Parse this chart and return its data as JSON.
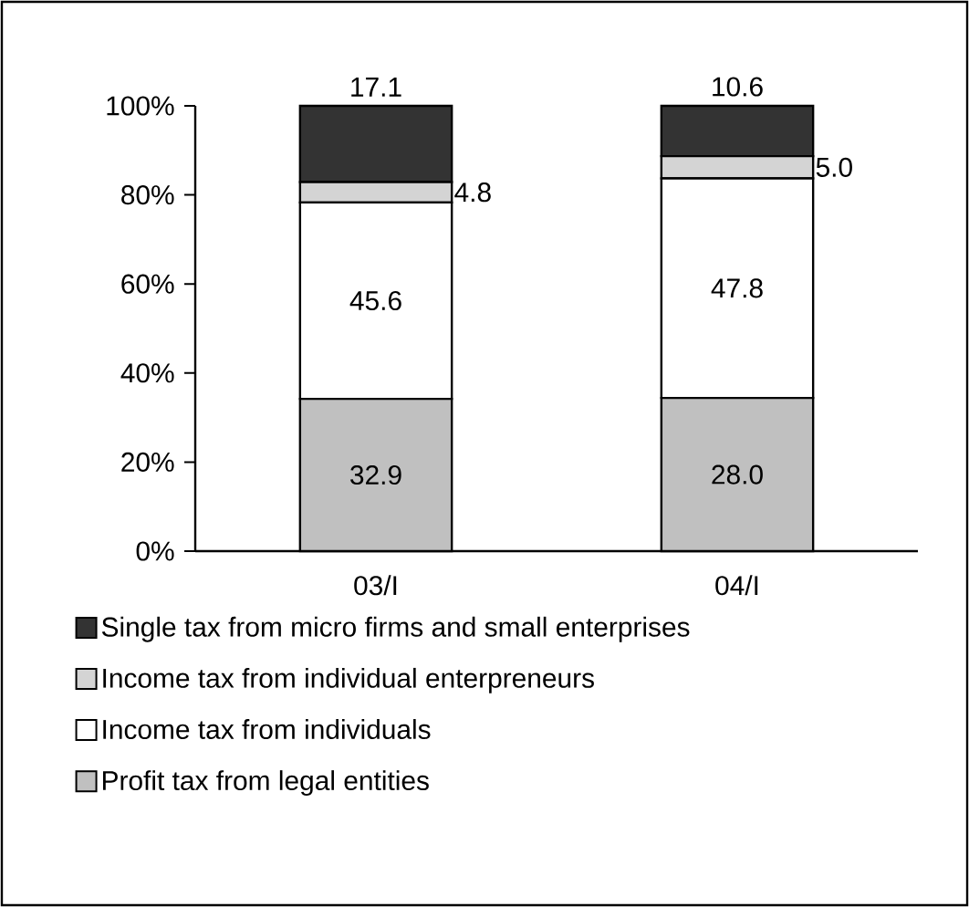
{
  "chart_data": {
    "type": "bar",
    "stacked": true,
    "categories": [
      "03/I",
      "04/I"
    ],
    "series": [
      {
        "name": "Profit tax from legal entities",
        "color": "#c0c0c0",
        "values": [
          34.2,
          34.4
        ]
      },
      {
        "name": "Income tax from individuals",
        "color": "#ffffff",
        "values": [
          44.1,
          49.3
        ]
      },
      {
        "name": "Income tax from individual enterpreneurs",
        "color": "#d4d4d4",
        "values": [
          4.6,
          5.0
        ]
      },
      {
        "name": "Single tax from micro firms and small enterprises",
        "color": "#333333",
        "values": [
          17.1,
          11.3
        ]
      }
    ],
    "annotations": [
      {
        "text": "17.1",
        "x": "03/I",
        "y": 100
      },
      {
        "text": "4.8",
        "x": "03/I",
        "y": 82.9
      },
      "45.6",
      {
        "text": "32.9",
        "x": "03/I",
        "y": 34.2
      },
      {
        "text": "10.6",
        "x": "04/I",
        "y": 100
      },
      {
        "text": "5.0",
        "x": "04/I",
        "y": 88.7
      },
      "47.8",
      {
        "text": "28.0",
        "x": "04/I",
        "y": 34.4
      }
    ],
    "ylim": [
      0,
      100
    ],
    "yticks": [
      {
        "value": 0,
        "label": "0%"
      },
      {
        "value": 20,
        "label": "20%"
      },
      {
        "value": 40,
        "label": "40%"
      },
      {
        "value": 60,
        "label": "60%"
      },
      {
        "value": 80,
        "label": "80%"
      },
      {
        "value": 100,
        "label": "100%"
      }
    ],
    "grid": false,
    "legend": "bottom"
  }
}
